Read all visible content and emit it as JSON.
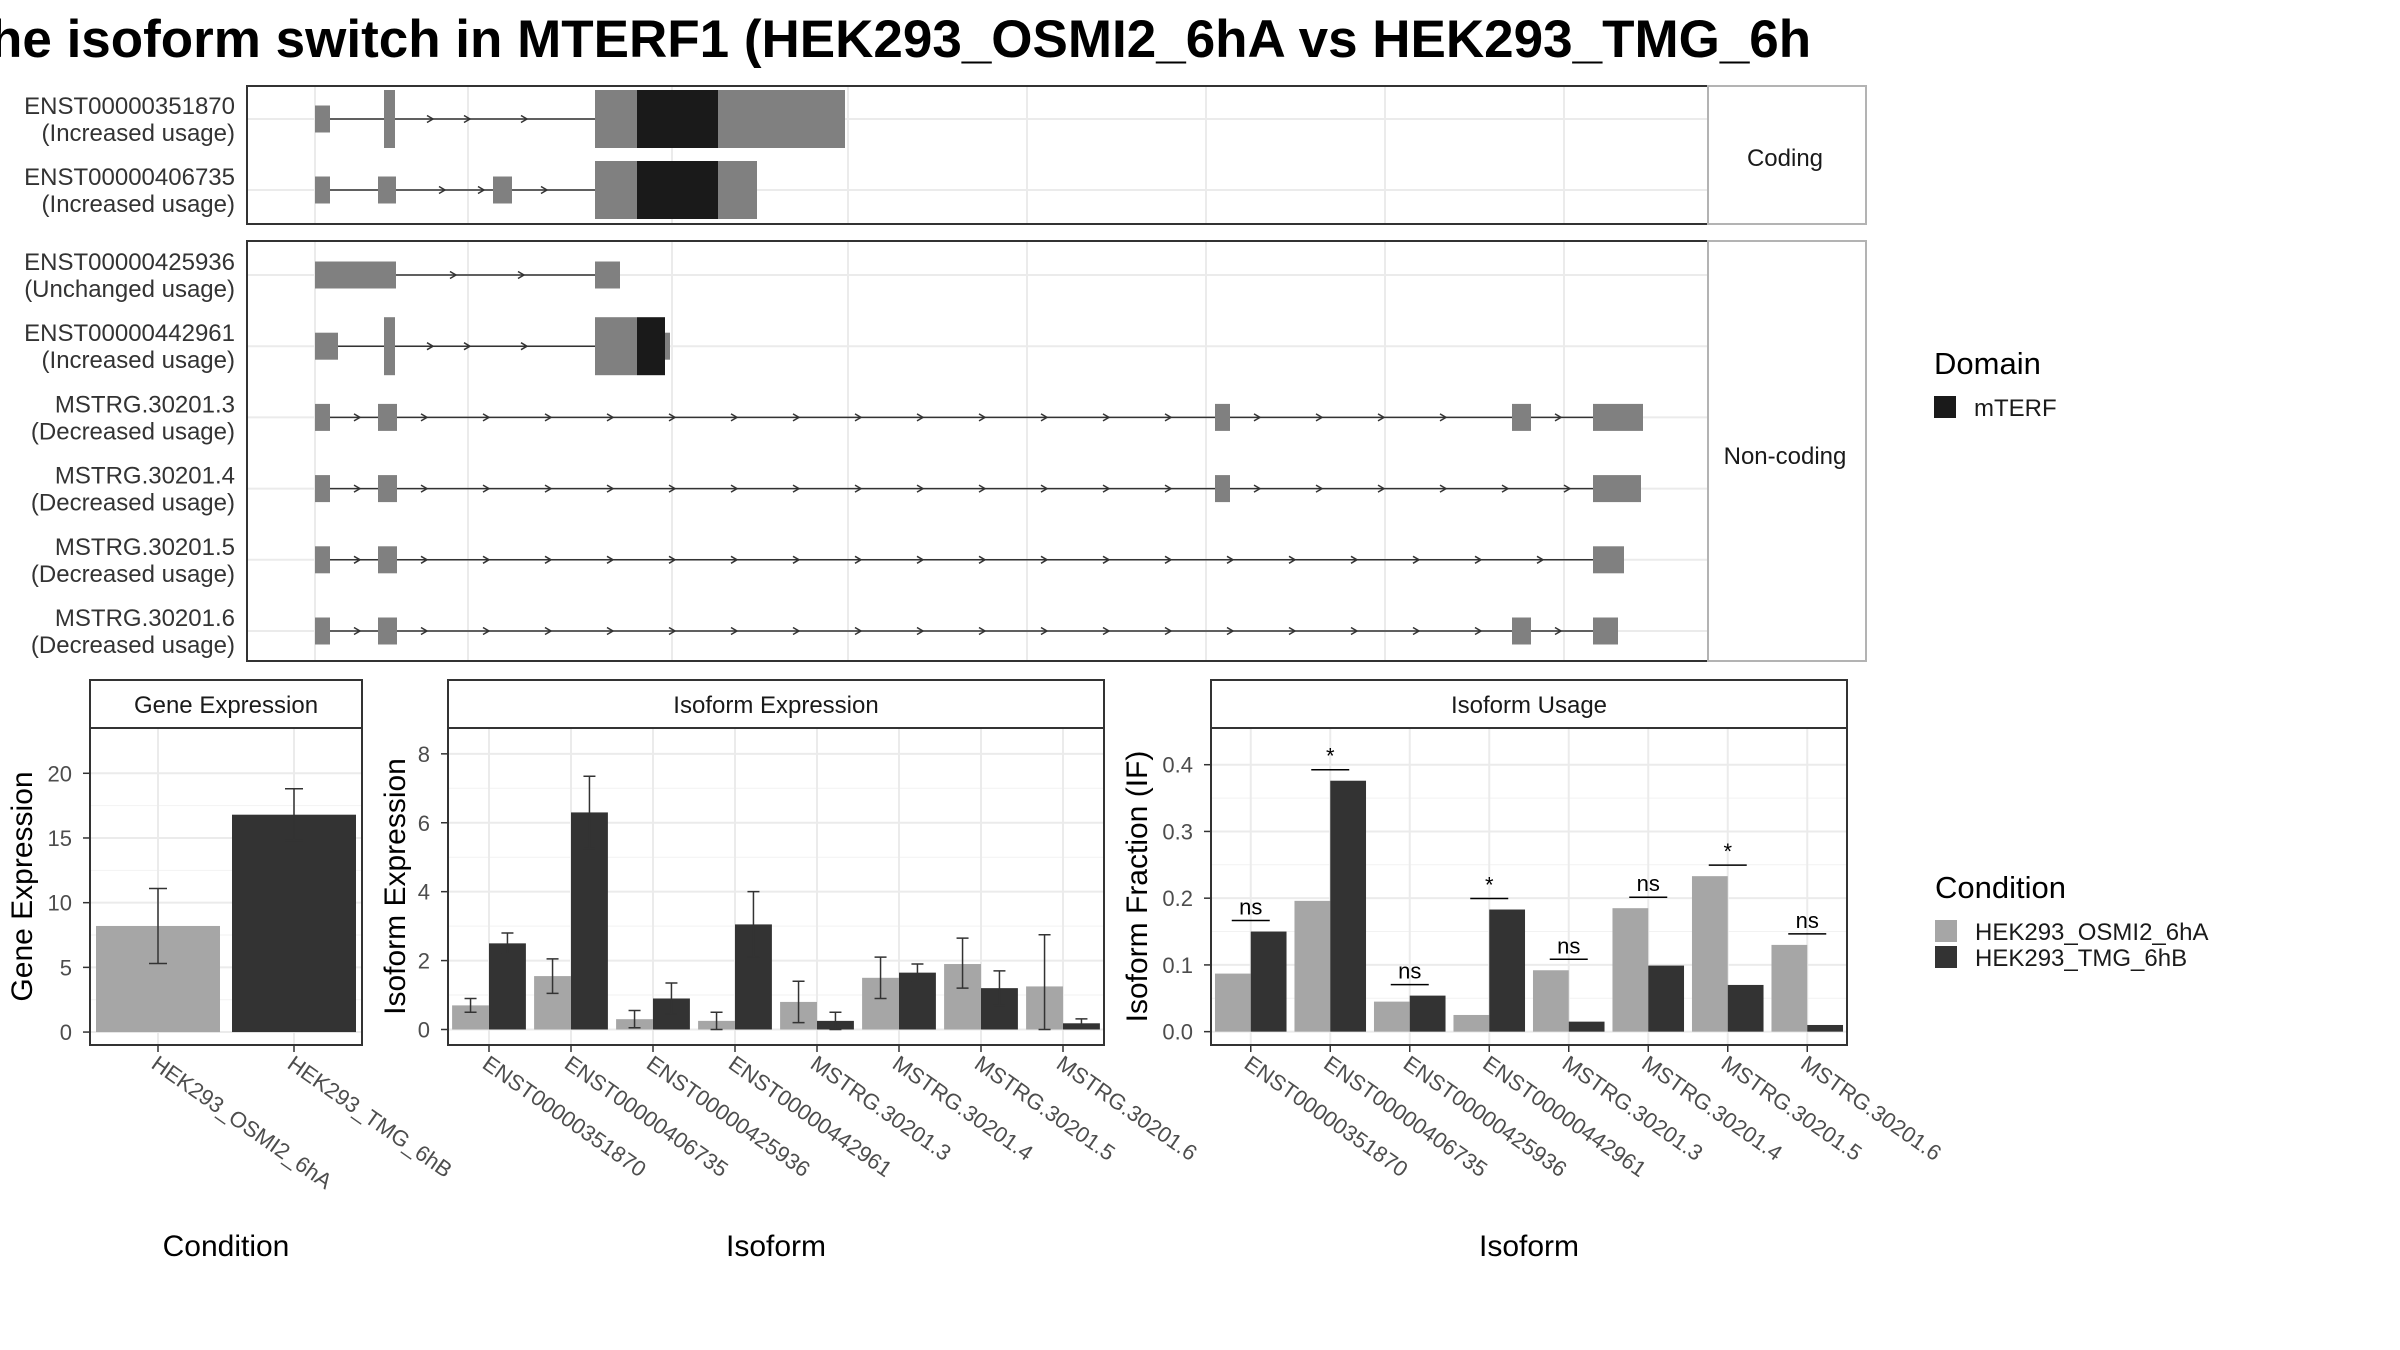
{
  "title": "he isoform switch in MTERF1 (HEK293_OSMI2_6hA vs HEK293_TMG_6h",
  "colors": {
    "exon": "#808080",
    "domain": "#1a1a1a",
    "cond_a": "#a6a6a6",
    "cond_b": "#333333",
    "grid": "#ebebeb",
    "strip_bg": "#ffffff",
    "panel_border": "#333333"
  },
  "transcript_panels": {
    "coding_label": "Coding",
    "noncoding_label": "Non-coding",
    "coding": [
      {
        "id": "ENST00000351870",
        "usage": "(Increased usage)"
      },
      {
        "id": "ENST00000406735",
        "usage": "(Increased usage)"
      }
    ],
    "noncoding": [
      {
        "id": "ENST00000425936",
        "usage": "(Unchanged usage)"
      },
      {
        "id": "ENST00000442961",
        "usage": "(Increased usage)"
      },
      {
        "id": "MSTRG.30201.3",
        "usage": "(Decreased usage)"
      },
      {
        "id": "MSTRG.30201.4",
        "usage": "(Decreased usage)"
      },
      {
        "id": "MSTRG.30201.5",
        "usage": "(Decreased usage)"
      },
      {
        "id": "MSTRG.30201.6",
        "usage": "(Decreased usage)"
      }
    ]
  },
  "legends": {
    "domain_title": "Domain",
    "domain_items": [
      "mTERF"
    ],
    "condition_title": "Condition",
    "condition_items": [
      "HEK293_OSMI2_6hA",
      "HEK293_TMG_6hB"
    ]
  },
  "chart_data": [
    {
      "type": "bar",
      "strip": "Gene Expression",
      "xlabel": "Condition",
      "ylabel": "Gene Expression",
      "categories": [
        "HEK293_OSMI2_6hA",
        "HEK293_TMG_6hB"
      ],
      "values": [
        8.2,
        16.8
      ],
      "errors": [
        [
          5.3,
          11.1
        ],
        [
          14.8,
          18.8
        ]
      ],
      "ylim": [
        -1,
        23.5
      ],
      "yticks": [
        0,
        5,
        10,
        15,
        20
      ]
    },
    {
      "type": "bar",
      "strip": "Isoform Expression",
      "xlabel": "Isoform",
      "ylabel": "Isoform Expression",
      "categories": [
        "ENST00000351870",
        "ENST00000406735",
        "ENST00000425936",
        "ENST00000442961",
        "MSTRG.30201.3",
        "MSTRG.30201.4",
        "MSTRG.30201.5",
        "MSTRG.30201.6"
      ],
      "series": [
        {
          "name": "HEK293_OSMI2_6hA",
          "values": [
            0.7,
            1.55,
            0.3,
            0.25,
            0.8,
            1.5,
            1.9,
            1.25
          ],
          "errors": [
            [
              0.5,
              0.9
            ],
            [
              1.05,
              2.05
            ],
            [
              0.05,
              0.55
            ],
            [
              0.0,
              0.5
            ],
            [
              0.2,
              1.4
            ],
            [
              0.9,
              2.1
            ],
            [
              1.2,
              2.65
            ],
            [
              0.0,
              2.75
            ]
          ]
        },
        {
          "name": "HEK293_TMG_6hB",
          "values": [
            2.5,
            6.3,
            0.9,
            3.05,
            0.25,
            1.65,
            1.2,
            0.18
          ],
          "errors": [
            [
              2.2,
              2.8
            ],
            [
              5.25,
              7.35
            ],
            [
              0.45,
              1.35
            ],
            [
              2.1,
              4.0
            ],
            [
              0.0,
              0.5
            ],
            [
              1.4,
              1.9
            ],
            [
              0.7,
              1.7
            ],
            [
              0.05,
              0.31
            ]
          ]
        }
      ],
      "ylim": [
        -0.45,
        8.75
      ],
      "yticks": [
        0,
        2,
        4,
        6,
        8
      ]
    },
    {
      "type": "bar",
      "strip": "Isoform Usage",
      "xlabel": "Isoform",
      "ylabel": "Isoform Fraction (IF)",
      "categories": [
        "ENST00000351870",
        "ENST00000406735",
        "ENST00000425936",
        "ENST00000442961",
        "MSTRG.30201.3",
        "MSTRG.30201.4",
        "MSTRG.30201.5",
        "MSTRG.30201.6"
      ],
      "series": [
        {
          "name": "HEK293_OSMI2_6hA",
          "values": [
            0.087,
            0.196,
            0.045,
            0.025,
            0.092,
            0.185,
            0.233,
            0.13
          ]
        },
        {
          "name": "HEK293_TMG_6hB",
          "values": [
            0.15,
            0.376,
            0.054,
            0.183,
            0.015,
            0.099,
            0.07,
            0.01
          ]
        }
      ],
      "significance": [
        "ns",
        "*",
        "ns",
        "*",
        "ns",
        "ns",
        "*",
        "ns"
      ],
      "ylim": [
        -0.02,
        0.455
      ],
      "yticks": [
        0.0,
        0.1,
        0.2,
        0.3,
        0.4
      ],
      "ytick_labels": [
        "0.0",
        "0.1",
        "0.2",
        "0.3",
        "0.4"
      ]
    }
  ]
}
